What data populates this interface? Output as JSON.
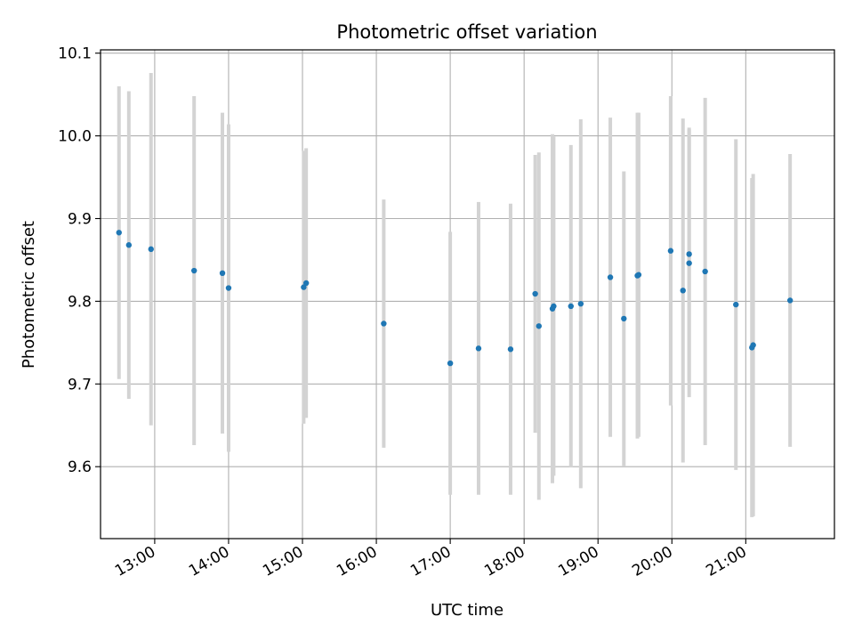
{
  "chart_data": {
    "type": "scatter",
    "title": "Photometric offset variation",
    "xlabel": "UTC time",
    "ylabel": "Photometric offset",
    "x_tick_labels": [
      "13:00",
      "14:00",
      "15:00",
      "16:00",
      "17:00",
      "18:00",
      "19:00",
      "20:00",
      "21:00"
    ],
    "y_tick_labels": [
      "9.6",
      "9.7",
      "9.8",
      "9.9",
      "10.0",
      "10.1"
    ],
    "xlim": [
      "12:16",
      "22:12"
    ],
    "ylim": [
      9.513,
      10.104
    ],
    "grid": true,
    "point_color": "#1f77b4",
    "errorbar_color": "#d3d3d3",
    "points": [
      {
        "x": "12:31",
        "y": 9.883,
        "y_err": 0.177
      },
      {
        "x": "12:39",
        "y": 9.868,
        "y_err": 0.186
      },
      {
        "x": "12:57",
        "y": 9.863,
        "y_err": 0.213
      },
      {
        "x": "13:32",
        "y": 9.837,
        "y_err": 0.211
      },
      {
        "x": "13:55",
        "y": 9.834,
        "y_err": 0.194
      },
      {
        "x": "14:00",
        "y": 9.816,
        "y_err": 0.198
      },
      {
        "x": "15:01",
        "y": 9.817,
        "y_err": 0.165
      },
      {
        "x": "15:03",
        "y": 9.822,
        "y_err": 0.163
      },
      {
        "x": "16:06",
        "y": 9.773,
        "y_err": 0.15
      },
      {
        "x": "17:00",
        "y": 9.725,
        "y_err": 0.159
      },
      {
        "x": "17:23",
        "y": 9.743,
        "y_err": 0.177
      },
      {
        "x": "17:49",
        "y": 9.742,
        "y_err": 0.176
      },
      {
        "x": "18:09",
        "y": 9.809,
        "y_err": 0.168
      },
      {
        "x": "18:12",
        "y": 9.77,
        "y_err": 0.21
      },
      {
        "x": "18:23",
        "y": 9.791,
        "y_err": 0.211
      },
      {
        "x": "18:24",
        "y": 9.794,
        "y_err": 0.205
      },
      {
        "x": "18:38",
        "y": 9.794,
        "y_err": 0.195
      },
      {
        "x": "18:46",
        "y": 9.797,
        "y_err": 0.223
      },
      {
        "x": "19:10",
        "y": 9.829,
        "y_err": 0.193
      },
      {
        "x": "19:21",
        "y": 9.779,
        "y_err": 0.178
      },
      {
        "x": "19:32",
        "y": 9.831,
        "y_err": 0.197
      },
      {
        "x": "19:33",
        "y": 9.832,
        "y_err": 0.196
      },
      {
        "x": "19:59",
        "y": 9.861,
        "y_err": 0.187
      },
      {
        "x": "20:09",
        "y": 9.813,
        "y_err": 0.208
      },
      {
        "x": "20:14",
        "y": 9.857,
        "y_err": 0.153
      },
      {
        "x": "20:14",
        "y": 9.846,
        "y_err": 0.162
      },
      {
        "x": "20:27",
        "y": 9.836,
        "y_err": 0.21
      },
      {
        "x": "20:52",
        "y": 9.796,
        "y_err": 0.2
      },
      {
        "x": "21:05",
        "y": 9.744,
        "y_err": 0.205
      },
      {
        "x": "21:06",
        "y": 9.747,
        "y_err": 0.207
      },
      {
        "x": "21:36",
        "y": 9.801,
        "y_err": 0.177
      }
    ]
  }
}
